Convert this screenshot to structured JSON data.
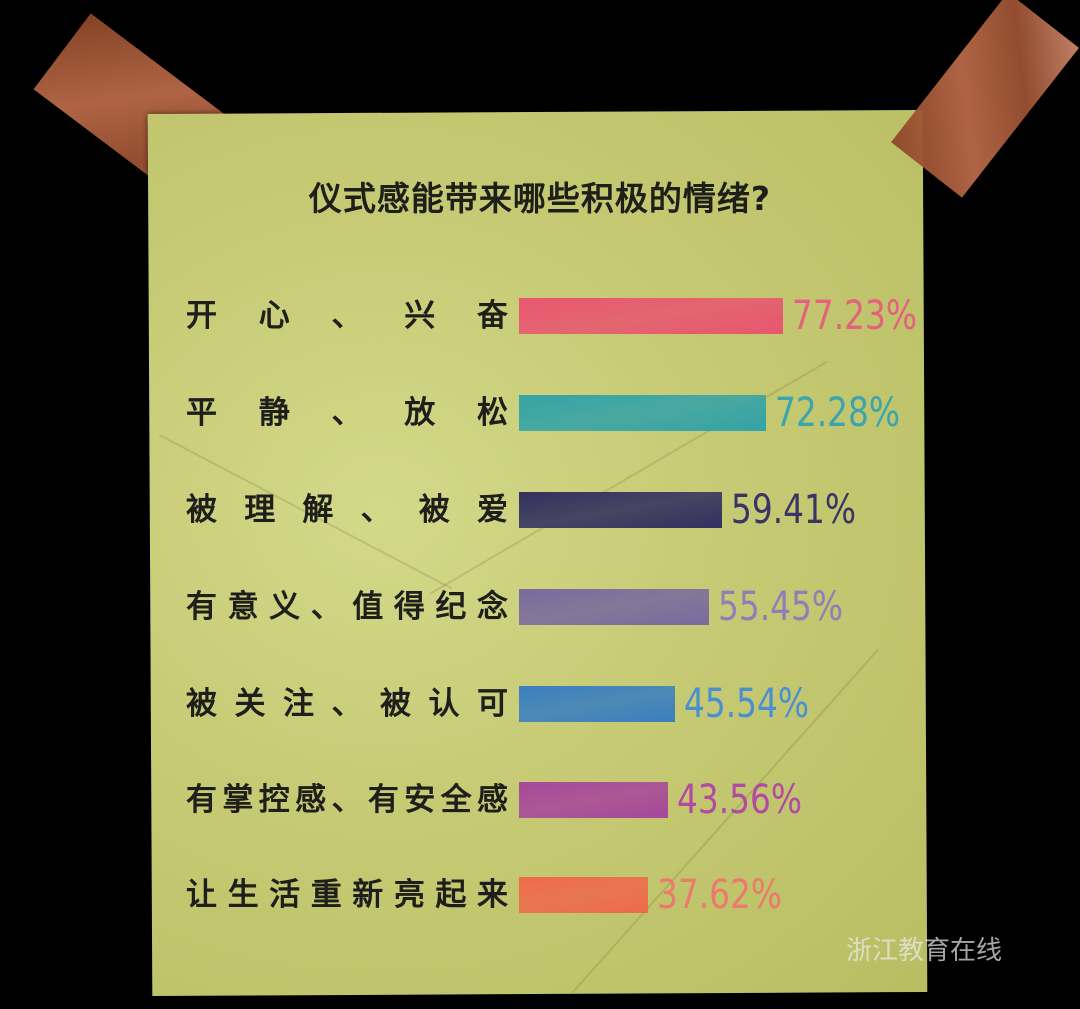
{
  "chart_data": {
    "type": "bar",
    "orientation": "horizontal",
    "title": "仪式感能带来哪些积极的情绪?",
    "categories": [
      "开心、兴奋",
      "平静、放松",
      "被理解、被爱",
      "有意义、值得纪念",
      "被关注、被认可",
      "有掌控感、有安全感",
      "让生活重新亮起来"
    ],
    "values": [
      77.23,
      72.28,
      59.41,
      55.45,
      45.54,
      43.56,
      37.62
    ],
    "value_labels": [
      "77.23%",
      "72.28%",
      "59.41%",
      "55.45%",
      "45.54%",
      "43.56%",
      "37.62%"
    ],
    "colors": [
      "#e8566f",
      "#35a3a6",
      "#33305f",
      "#7a6a9e",
      "#3b7fbf",
      "#a8479a",
      "#ee6a4c"
    ],
    "label_colors": [
      "#e5617d",
      "#3aa5ad",
      "#3b3466",
      "#8f7fb8",
      "#4a8fd0",
      "#b24aa2",
      "#ec7a6c"
    ],
    "xlim": [
      0,
      100
    ],
    "grid": false
  },
  "watermark": "浙江教育在线"
}
